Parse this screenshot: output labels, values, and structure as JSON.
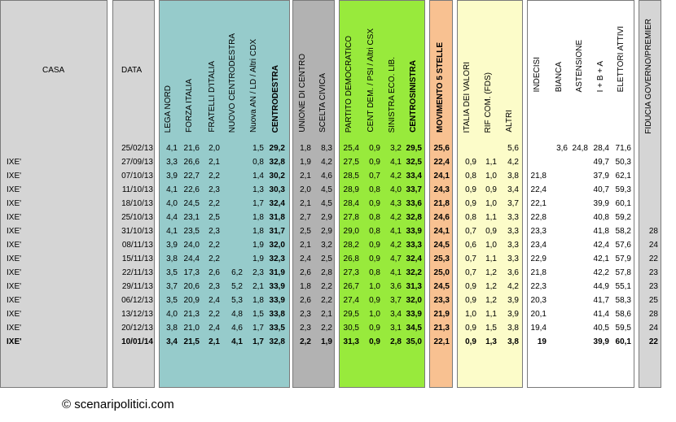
{
  "headers": {
    "casa": "CASA",
    "data": "DATA",
    "cdx": [
      "LEGA NORD",
      "FORZA ITALIA",
      "FRATELLI D'ITALIA",
      "NUOVO CENTRODESTRA",
      "Nuova AN / LD / Altri CDX",
      "CENTRODESTRA"
    ],
    "centro": [
      "UNIONE DI CENTRO",
      "SCELTA CIVICA"
    ],
    "csx": [
      "PARTITO DEMOCRATICO",
      "CENT DEM. / PSI / Altri CSX",
      "SINISTRA ECO. LIB.",
      "CENTROSINISTRA"
    ],
    "m5s": "MOVIMENTO 5 STELLE",
    "altri": [
      "ITALIA DEI VALORI",
      "RIF COM. (FDS)",
      "ALTRI"
    ],
    "aff": [
      "INDECISI",
      "BIANCA",
      "ASTENSIONE",
      "I + B + A",
      "ELETTORI ATTIVI"
    ],
    "fiducia": "FIDUCIA GOVERNO/PREMIER"
  },
  "colors": {
    "cdx": "#96cbcb",
    "centro": "#b2b2b2",
    "csx": "#98ea3c",
    "m5s": "#f8c191",
    "altri": "#fcfcc9",
    "gray": "#d5d5d5"
  },
  "rows": [
    {
      "casa": "",
      "data": "25/02/13",
      "ln": "4,1",
      "fi": "21,6",
      "fdi": "2,0",
      "ncd": "",
      "nan": "1,5",
      "cdx": "29,2",
      "udc": "1,8",
      "sc": "8,3",
      "pd": "25,4",
      "cent": "0,9",
      "sel": "3,2",
      "csx": "29,5",
      "m5s": "25,6",
      "idv": "",
      "rif": "",
      "altri": "5,6",
      "ind": "",
      "bia": "3,6",
      "ast": "24,8",
      "iba": "28,4",
      "att": "71,6",
      "fid": ""
    },
    {
      "casa": "IXE'",
      "data": "27/09/13",
      "ln": "3,3",
      "fi": "26,6",
      "fdi": "2,1",
      "ncd": "",
      "nan": "0,8",
      "cdx": "32,8",
      "udc": "1,9",
      "sc": "4,2",
      "pd": "27,5",
      "cent": "0,9",
      "sel": "4,1",
      "csx": "32,5",
      "m5s": "22,4",
      "idv": "0,9",
      "rif": "1,1",
      "altri": "4,2",
      "ind": "",
      "bia": "",
      "ast": "",
      "iba": "49,7",
      "att": "50,3",
      "fid": ""
    },
    {
      "casa": "IXE'",
      "data": "07/10/13",
      "ln": "3,9",
      "fi": "22,7",
      "fdi": "2,2",
      "ncd": "",
      "nan": "1,4",
      "cdx": "30,2",
      "udc": "2,1",
      "sc": "4,6",
      "pd": "28,5",
      "cent": "0,7",
      "sel": "4,2",
      "csx": "33,4",
      "m5s": "24,1",
      "idv": "0,8",
      "rif": "1,0",
      "altri": "3,8",
      "ind": "21,8",
      "bia": "",
      "ast": "",
      "iba": "37,9",
      "att": "62,1",
      "fid": ""
    },
    {
      "casa": "IXE'",
      "data": "11/10/13",
      "ln": "4,1",
      "fi": "22,6",
      "fdi": "2,3",
      "ncd": "",
      "nan": "1,3",
      "cdx": "30,3",
      "udc": "2,0",
      "sc": "4,5",
      "pd": "28,9",
      "cent": "0,8",
      "sel": "4,0",
      "csx": "33,7",
      "m5s": "24,3",
      "idv": "0,9",
      "rif": "0,9",
      "altri": "3,4",
      "ind": "22,4",
      "bia": "",
      "ast": "",
      "iba": "40,7",
      "att": "59,3",
      "fid": ""
    },
    {
      "casa": "IXE'",
      "data": "18/10/13",
      "ln": "4,0",
      "fi": "24,5",
      "fdi": "2,2",
      "ncd": "",
      "nan": "1,7",
      "cdx": "32,4",
      "udc": "2,1",
      "sc": "4,5",
      "pd": "28,4",
      "cent": "0,9",
      "sel": "4,3",
      "csx": "33,6",
      "m5s": "21,8",
      "idv": "0,9",
      "rif": "1,0",
      "altri": "3,7",
      "ind": "22,1",
      "bia": "",
      "ast": "",
      "iba": "39,9",
      "att": "60,1",
      "fid": ""
    },
    {
      "casa": "IXE'",
      "data": "25/10/13",
      "ln": "4,4",
      "fi": "23,1",
      "fdi": "2,5",
      "ncd": "",
      "nan": "1,8",
      "cdx": "31,8",
      "udc": "2,7",
      "sc": "2,9",
      "pd": "27,8",
      "cent": "0,8",
      "sel": "4,2",
      "csx": "32,8",
      "m5s": "24,6",
      "idv": "0,8",
      "rif": "1,1",
      "altri": "3,3",
      "ind": "22,8",
      "bia": "",
      "ast": "",
      "iba": "40,8",
      "att": "59,2",
      "fid": ""
    },
    {
      "casa": "IXE'",
      "data": "31/10/13",
      "ln": "4,1",
      "fi": "23,5",
      "fdi": "2,3",
      "ncd": "",
      "nan": "1,8",
      "cdx": "31,7",
      "udc": "2,5",
      "sc": "2,9",
      "pd": "29,0",
      "cent": "0,8",
      "sel": "4,1",
      "csx": "33,9",
      "m5s": "24,1",
      "idv": "0,7",
      "rif": "0,9",
      "altri": "3,3",
      "ind": "23,3",
      "bia": "",
      "ast": "",
      "iba": "41,8",
      "att": "58,2",
      "fid": "28"
    },
    {
      "casa": "IXE'",
      "data": "08/11/13",
      "ln": "3,9",
      "fi": "24,0",
      "fdi": "2,2",
      "ncd": "",
      "nan": "1,9",
      "cdx": "32,0",
      "udc": "2,1",
      "sc": "3,2",
      "pd": "28,2",
      "cent": "0,9",
      "sel": "4,2",
      "csx": "33,3",
      "m5s": "24,5",
      "idv": "0,6",
      "rif": "1,0",
      "altri": "3,3",
      "ind": "23,4",
      "bia": "",
      "ast": "",
      "iba": "42,4",
      "att": "57,6",
      "fid": "24"
    },
    {
      "casa": "IXE'",
      "data": "15/11/13",
      "ln": "3,8",
      "fi": "24,4",
      "fdi": "2,2",
      "ncd": "",
      "nan": "1,9",
      "cdx": "32,3",
      "udc": "2,4",
      "sc": "2,5",
      "pd": "26,8",
      "cent": "0,9",
      "sel": "4,7",
      "csx": "32,4",
      "m5s": "25,3",
      "idv": "0,7",
      "rif": "1,1",
      "altri": "3,3",
      "ind": "22,9",
      "bia": "",
      "ast": "",
      "iba": "42,1",
      "att": "57,9",
      "fid": "22"
    },
    {
      "casa": "IXE'",
      "data": "22/11/13",
      "ln": "3,5",
      "fi": "17,3",
      "fdi": "2,6",
      "ncd": "6,2",
      "nan": "2,3",
      "cdx": "31,9",
      "udc": "2,6",
      "sc": "2,8",
      "pd": "27,3",
      "cent": "0,8",
      "sel": "4,1",
      "csx": "32,2",
      "m5s": "25,0",
      "idv": "0,7",
      "rif": "1,2",
      "altri": "3,6",
      "ind": "21,8",
      "bia": "",
      "ast": "",
      "iba": "42,2",
      "att": "57,8",
      "fid": "23"
    },
    {
      "casa": "IXE'",
      "data": "29/11/13",
      "ln": "3,7",
      "fi": "20,6",
      "fdi": "2,3",
      "ncd": "5,2",
      "nan": "2,1",
      "cdx": "33,9",
      "udc": "1,8",
      "sc": "2,2",
      "pd": "26,7",
      "cent": "1,0",
      "sel": "3,6",
      "csx": "31,3",
      "m5s": "24,5",
      "idv": "0,9",
      "rif": "1,2",
      "altri": "4,2",
      "ind": "22,3",
      "bia": "",
      "ast": "",
      "iba": "44,9",
      "att": "55,1",
      "fid": "23"
    },
    {
      "casa": "IXE'",
      "data": "06/12/13",
      "ln": "3,5",
      "fi": "20,9",
      "fdi": "2,4",
      "ncd": "5,3",
      "nan": "1,8",
      "cdx": "33,9",
      "udc": "2,6",
      "sc": "2,2",
      "pd": "27,4",
      "cent": "0,9",
      "sel": "3,7",
      "csx": "32,0",
      "m5s": "23,3",
      "idv": "0,9",
      "rif": "1,2",
      "altri": "3,9",
      "ind": "20,3",
      "bia": "",
      "ast": "",
      "iba": "41,7",
      "att": "58,3",
      "fid": "25"
    },
    {
      "casa": "IXE'",
      "data": "13/12/13",
      "ln": "4,0",
      "fi": "21,3",
      "fdi": "2,2",
      "ncd": "4,8",
      "nan": "1,5",
      "cdx": "33,8",
      "udc": "2,3",
      "sc": "2,1",
      "pd": "29,5",
      "cent": "1,0",
      "sel": "3,4",
      "csx": "33,9",
      "m5s": "21,9",
      "idv": "1,0",
      "rif": "1,1",
      "altri": "3,9",
      "ind": "20,1",
      "bia": "",
      "ast": "",
      "iba": "41,4",
      "att": "58,6",
      "fid": "28"
    },
    {
      "casa": "IXE'",
      "data": "20/12/13",
      "ln": "3,8",
      "fi": "21,0",
      "fdi": "2,4",
      "ncd": "4,6",
      "nan": "1,7",
      "cdx": "33,5",
      "udc": "2,3",
      "sc": "2,2",
      "pd": "30,5",
      "cent": "0,9",
      "sel": "3,1",
      "csx": "34,5",
      "m5s": "21,3",
      "idv": "0,9",
      "rif": "1,5",
      "altri": "3,8",
      "ind": "19,4",
      "bia": "",
      "ast": "",
      "iba": "40,5",
      "att": "59,5",
      "fid": "24"
    },
    {
      "casa": "IXE'",
      "data": "10/01/14",
      "ln": "3,4",
      "fi": "21,5",
      "fdi": "2,1",
      "ncd": "4,1",
      "nan": "1,7",
      "cdx": "32,8",
      "udc": "2,2",
      "sc": "1,9",
      "pd": "31,3",
      "cent": "0,9",
      "sel": "2,8",
      "csx": "35,0",
      "m5s": "22,1",
      "idv": "0,9",
      "rif": "1,3",
      "altri": "3,8",
      "ind": "19",
      "bia": "",
      "ast": "",
      "iba": "39,9",
      "att": "60,1",
      "fid": "22"
    }
  ],
  "footer": "© scenaripolitici.com"
}
